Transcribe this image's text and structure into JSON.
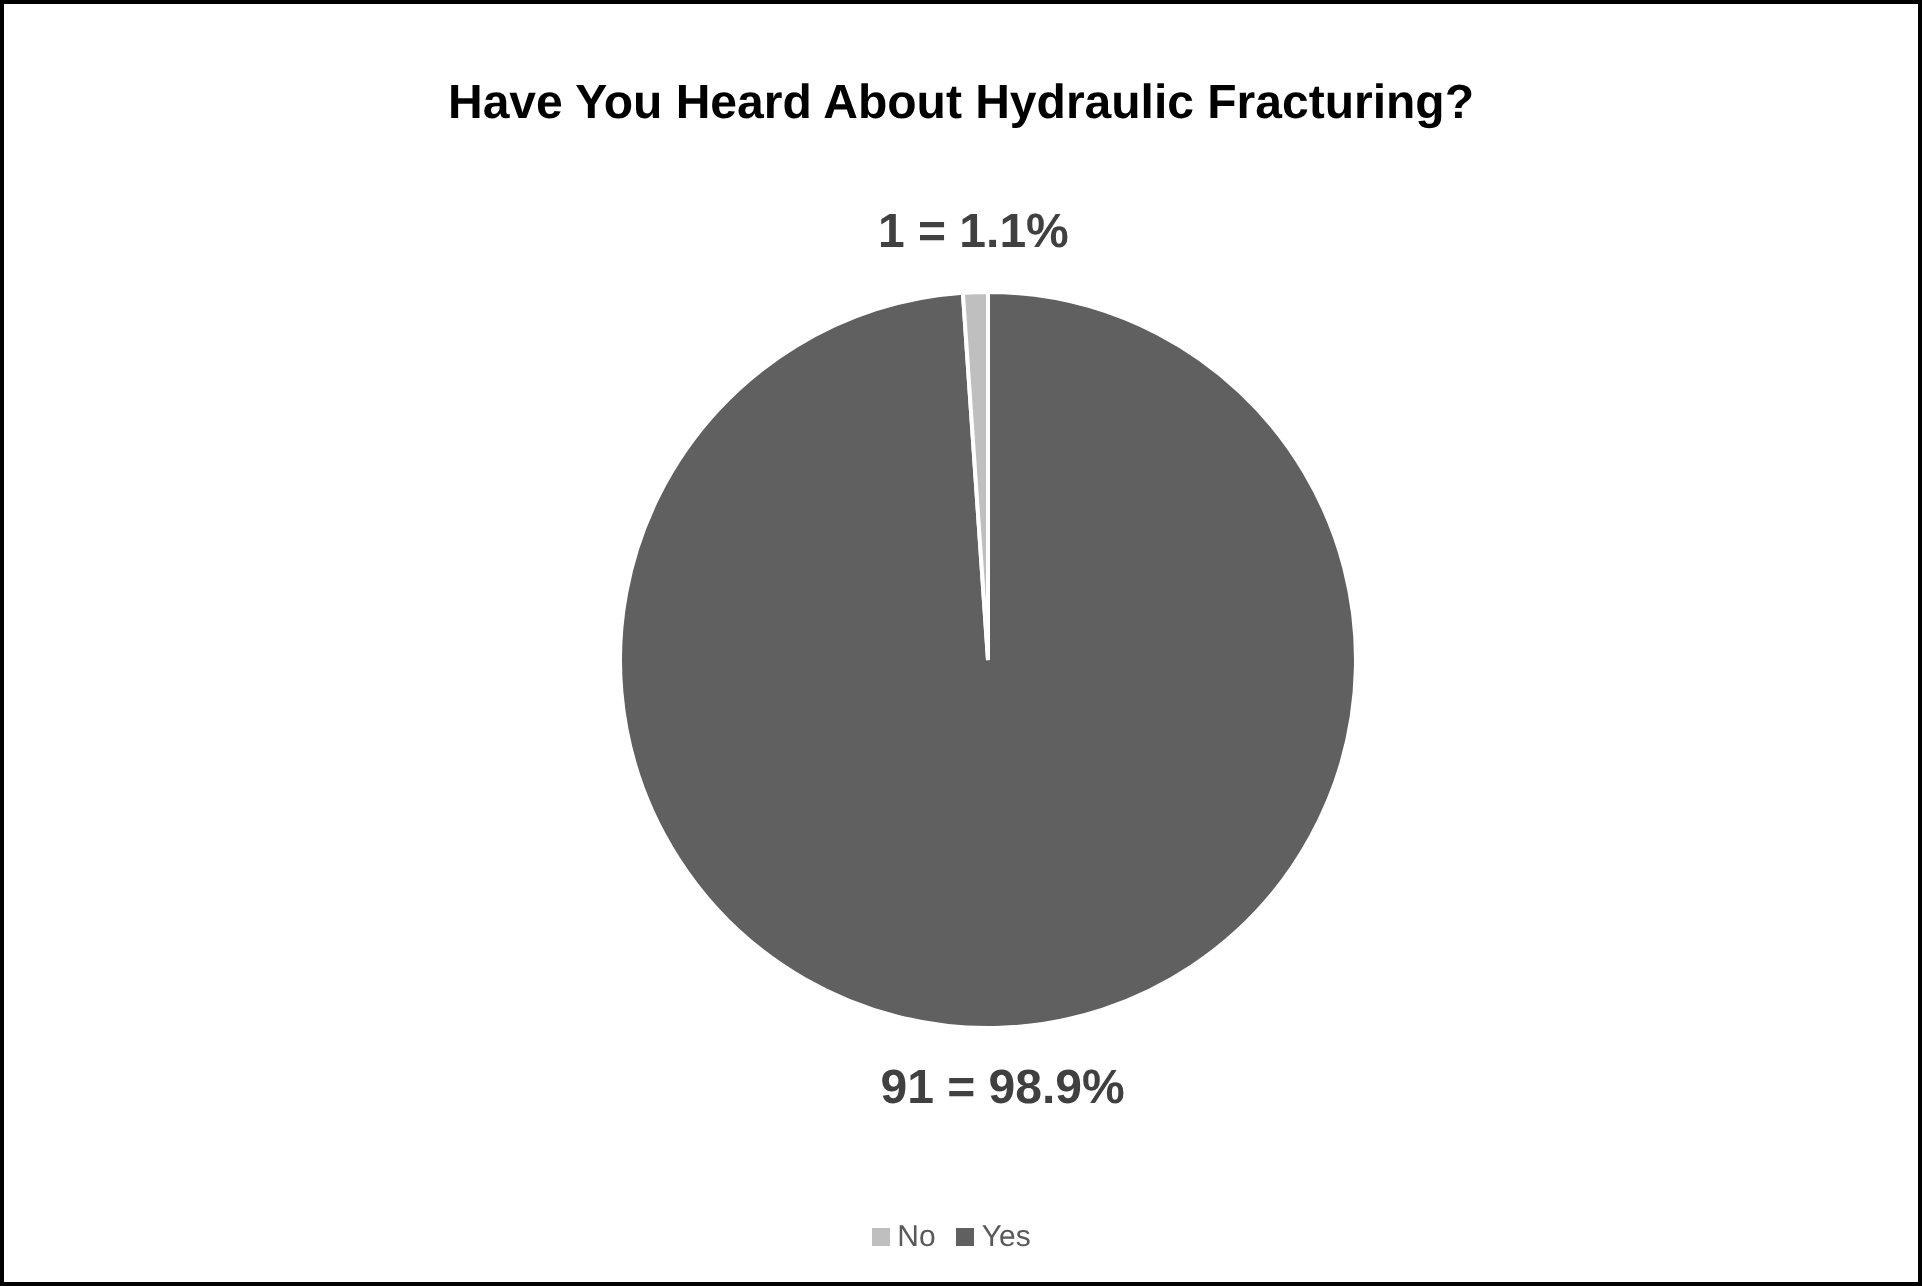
{
  "chart_data": {
    "type": "pie",
    "title": "Have You Heard About Hydraulic Fracturing?",
    "categories": [
      "Yes",
      "No"
    ],
    "values": [
      91,
      1
    ],
    "colors": [
      "#606060",
      "#bfbfbf"
    ],
    "value_labels": [
      "91 = 98.9%",
      "1 = 1.1%"
    ],
    "legend": "bottom"
  }
}
